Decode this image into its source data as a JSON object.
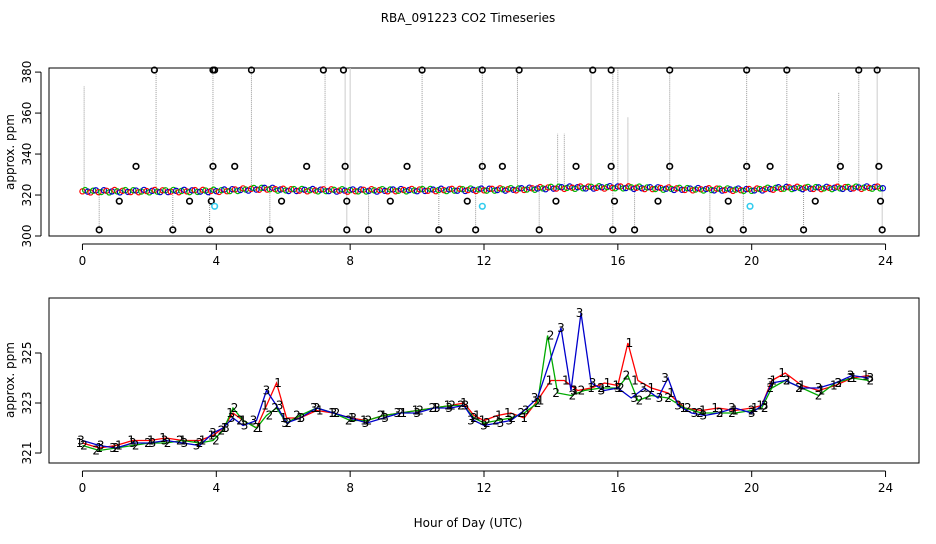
{
  "title": "RBA_091223  CO2 Timeseries",
  "colors": {
    "series1": "#ff0000",
    "series2": "#00bb00",
    "series3": "#0000cc",
    "raw": "#000000",
    "flagged": "#33ccee",
    "dropline": "#999999"
  },
  "chart_data": [
    {
      "type": "scatter",
      "panel": "top",
      "ylabel": "approx. ppm",
      "xlabel": "",
      "xlim": [
        -1,
        25
      ],
      "ylim": [
        300,
        382
      ],
      "xticks": [
        "0",
        "4",
        "8",
        "12",
        "16",
        "20",
        "24"
      ],
      "yticks": [
        "300",
        "320",
        "340",
        "360",
        "380"
      ],
      "legend": "none",
      "baseline": [
        [
          0,
          321.8
        ],
        [
          2,
          321.9
        ],
        [
          4,
          322.0
        ],
        [
          5.5,
          323.2
        ],
        [
          6,
          322.5
        ],
        [
          8,
          322.2
        ],
        [
          10,
          322.4
        ],
        [
          12,
          322.6
        ],
        [
          13,
          322.8
        ],
        [
          14,
          323.5
        ],
        [
          16,
          323.8
        ],
        [
          18,
          322.9
        ],
        [
          20,
          322.5
        ],
        [
          21,
          323.5
        ],
        [
          22,
          323.4
        ],
        [
          24,
          323.7
        ]
      ],
      "outliers_high": [
        2.15,
        3.9,
        3.95,
        5.05,
        7.2,
        7.8,
        10.15,
        11.95,
        13.05,
        15.25,
        15.8,
        17.55,
        19.85,
        21.05,
        23.2,
        23.75
      ],
      "outliers_low": [
        0.5,
        2.7,
        3.8,
        5.6,
        7.9,
        8.55,
        10.65,
        11.75,
        13.65,
        15.85,
        16.5,
        18.75,
        19.75,
        21.55,
        23.9
      ],
      "outliers_mid": [
        [
          1.6,
          334
        ],
        [
          3.9,
          334
        ],
        [
          4.55,
          334
        ],
        [
          6.7,
          334
        ],
        [
          7.85,
          334
        ],
        [
          9.7,
          334
        ],
        [
          11.95,
          334
        ],
        [
          12.55,
          334
        ],
        [
          14.75,
          334
        ],
        [
          15.8,
          334
        ],
        [
          17.55,
          334
        ],
        [
          19.85,
          334
        ],
        [
          20.55,
          334
        ],
        [
          22.65,
          334
        ],
        [
          23.8,
          334
        ]
      ],
      "outliers_low2": [
        [
          1.1,
          317
        ],
        [
          3.2,
          317
        ],
        [
          3.85,
          317
        ],
        [
          5.95,
          317
        ],
        [
          7.9,
          317
        ],
        [
          9.2,
          317
        ],
        [
          11.5,
          317
        ],
        [
          14.15,
          317
        ],
        [
          15.9,
          317
        ],
        [
          17.2,
          317
        ],
        [
          19.3,
          317
        ],
        [
          21.9,
          317
        ],
        [
          23.85,
          317
        ]
      ],
      "flagged_points": [
        [
          3.95,
          314.5
        ],
        [
          11.95,
          314.5
        ],
        [
          19.95,
          314.5
        ]
      ],
      "spikes": [
        [
          0.05,
          373
        ],
        [
          2.2,
          382
        ],
        [
          3.9,
          382
        ],
        [
          5.05,
          382
        ],
        [
          7.25,
          382
        ],
        [
          7.85,
          382
        ],
        [
          8.0,
          382
        ],
        [
          10.15,
          382
        ],
        [
          11.95,
          382
        ],
        [
          13.0,
          382
        ],
        [
          14.2,
          350
        ],
        [
          14.4,
          350
        ],
        [
          15.2,
          382
        ],
        [
          15.85,
          382
        ],
        [
          16.0,
          382
        ],
        [
          16.3,
          358
        ],
        [
          17.55,
          382
        ],
        [
          19.85,
          382
        ],
        [
          21.05,
          382
        ],
        [
          22.6,
          370
        ],
        [
          23.2,
          382
        ],
        [
          23.75,
          382
        ]
      ]
    },
    {
      "type": "line",
      "panel": "bottom",
      "ylabel": "approx. ppm",
      "xlabel": "Hour of Day (UTC)",
      "xlim": [
        -1,
        25
      ],
      "ylim": [
        320.6,
        327.2
      ],
      "xticks": [
        "0",
        "4",
        "8",
        "12",
        "16",
        "20",
        "24"
      ],
      "yticks": [
        "321",
        "323",
        "325"
      ],
      "legend": "none",
      "series": [
        {
          "marker": "1",
          "color": "#ff0000",
          "points": [
            [
              0,
              321.4
            ],
            [
              0.5,
              321.2
            ],
            [
              1,
              321.3
            ],
            [
              1.5,
              321.5
            ],
            [
              2,
              321.5
            ],
            [
              2.5,
              321.6
            ],
            [
              3,
              321.5
            ],
            [
              3.5,
              321.5
            ],
            [
              3.9,
              321.7
            ],
            [
              4.2,
              322.0
            ],
            [
              4.5,
              322.6
            ],
            [
              4.8,
              322.3
            ],
            [
              5.2,
              322.0
            ],
            [
              5.5,
              322.9
            ],
            [
              5.8,
              323.8
            ],
            [
              6.1,
              322.4
            ],
            [
              6.5,
              322.4
            ],
            [
              7,
              322.7
            ],
            [
              7.5,
              322.6
            ],
            [
              8,
              322.4
            ],
            [
              8.5,
              322.3
            ],
            [
              9,
              322.5
            ],
            [
              9.5,
              322.6
            ],
            [
              10,
              322.7
            ],
            [
              10.5,
              322.8
            ],
            [
              11,
              322.9
            ],
            [
              11.4,
              323.0
            ],
            [
              11.7,
              322.5
            ],
            [
              12,
              322.3
            ],
            [
              12.4,
              322.5
            ],
            [
              12.8,
              322.6
            ],
            [
              13.2,
              322.4
            ],
            [
              13.6,
              323.1
            ],
            [
              14.0,
              323.9
            ],
            [
              14.4,
              323.9
            ],
            [
              14.8,
              323.5
            ],
            [
              15.2,
              323.6
            ],
            [
              15.6,
              323.8
            ],
            [
              16.0,
              323.7
            ],
            [
              16.3,
              325.4
            ],
            [
              16.6,
              323.9
            ],
            [
              17.0,
              323.6
            ],
            [
              17.5,
              323.4
            ],
            [
              18,
              322.8
            ],
            [
              18.5,
              322.7
            ],
            [
              19,
              322.8
            ],
            [
              19.5,
              322.7
            ],
            [
              20,
              322.8
            ],
            [
              20.3,
              322.9
            ],
            [
              20.6,
              323.9
            ],
            [
              21.0,
              324.2
            ],
            [
              21.5,
              323.7
            ],
            [
              22,
              323.5
            ],
            [
              22.5,
              323.7
            ],
            [
              23,
              324.0
            ],
            [
              23.5,
              324.1
            ]
          ]
        },
        {
          "marker": "2",
          "color": "#00aa00",
          "points": [
            [
              0,
              321.3
            ],
            [
              0.5,
              321.1
            ],
            [
              1,
              321.2
            ],
            [
              1.5,
              321.3
            ],
            [
              2,
              321.4
            ],
            [
              2.5,
              321.4
            ],
            [
              3,
              321.5
            ],
            [
              3.5,
              321.4
            ],
            [
              3.9,
              321.5
            ],
            [
              4.2,
              321.9
            ],
            [
              4.5,
              322.8
            ],
            [
              4.8,
              322.3
            ],
            [
              5.2,
              322.0
            ],
            [
              5.5,
              322.5
            ],
            [
              5.8,
              322.8
            ],
            [
              6.1,
              322.2
            ],
            [
              6.5,
              322.5
            ],
            [
              7,
              322.8
            ],
            [
              7.5,
              322.6
            ],
            [
              8,
              322.3
            ],
            [
              8.5,
              322.3
            ],
            [
              9,
              322.5
            ],
            [
              9.5,
              322.6
            ],
            [
              10,
              322.7
            ],
            [
              10.5,
              322.8
            ],
            [
              11,
              322.9
            ],
            [
              11.4,
              322.9
            ],
            [
              11.7,
              322.4
            ],
            [
              12,
              322.2
            ],
            [
              12.4,
              322.3
            ],
            [
              12.8,
              322.4
            ],
            [
              13.2,
              322.6
            ],
            [
              13.6,
              323.0
            ],
            [
              13.9,
              325.7
            ],
            [
              14.2,
              323.4
            ],
            [
              14.6,
              323.3
            ],
            [
              15.0,
              323.5
            ],
            [
              15.5,
              323.6
            ],
            [
              16.0,
              323.6
            ],
            [
              16.3,
              324.1
            ],
            [
              16.6,
              323.1
            ],
            [
              17.0,
              323.3
            ],
            [
              17.5,
              323.2
            ],
            [
              18,
              322.8
            ],
            [
              18.5,
              322.6
            ],
            [
              19,
              322.6
            ],
            [
              19.5,
              322.6
            ],
            [
              20,
              322.7
            ],
            [
              20.3,
              322.8
            ],
            [
              20.6,
              323.6
            ],
            [
              21.0,
              323.9
            ],
            [
              21.5,
              323.6
            ],
            [
              22,
              323.3
            ],
            [
              22.5,
              323.8
            ],
            [
              23,
              324.0
            ],
            [
              23.5,
              323.9
            ]
          ]
        },
        {
          "marker": "3",
          "color": "#0000cc",
          "points": [
            [
              0,
              321.5
            ],
            [
              0.5,
              321.3
            ],
            [
              1,
              321.2
            ],
            [
              1.5,
              321.4
            ],
            [
              2,
              321.4
            ],
            [
              2.5,
              321.5
            ],
            [
              3,
              321.4
            ],
            [
              3.5,
              321.3
            ],
            [
              3.9,
              321.8
            ],
            [
              4.2,
              322.0
            ],
            [
              4.5,
              322.4
            ],
            [
              4.8,
              322.1
            ],
            [
              5.2,
              322.3
            ],
            [
              5.5,
              323.5
            ],
            [
              5.8,
              322.9
            ],
            [
              6.1,
              322.2
            ],
            [
              6.5,
              322.4
            ],
            [
              7,
              322.8
            ],
            [
              7.5,
              322.6
            ],
            [
              8,
              322.4
            ],
            [
              8.5,
              322.2
            ],
            [
              9,
              322.4
            ],
            [
              9.5,
              322.6
            ],
            [
              10,
              322.6
            ],
            [
              10.5,
              322.8
            ],
            [
              11,
              322.8
            ],
            [
              11.4,
              322.9
            ],
            [
              11.7,
              322.3
            ],
            [
              12,
              322.1
            ],
            [
              12.4,
              322.2
            ],
            [
              12.8,
              322.3
            ],
            [
              13.2,
              322.7
            ],
            [
              13.6,
              323.2
            ],
            [
              14.3,
              326.0
            ],
            [
              14.6,
              323.5
            ],
            [
              14.9,
              326.6
            ],
            [
              15.2,
              323.8
            ],
            [
              15.6,
              323.5
            ],
            [
              16.0,
              323.6
            ],
            [
              16.4,
              323.2
            ],
            [
              16.8,
              323.6
            ],
            [
              17.2,
              323.2
            ],
            [
              17.5,
              324.0
            ],
            [
              17.8,
              322.9
            ],
            [
              18.2,
              322.6
            ],
            [
              18.6,
              322.5
            ],
            [
              19,
              322.6
            ],
            [
              19.5,
              322.8
            ],
            [
              20,
              322.6
            ],
            [
              20.3,
              322.9
            ],
            [
              20.6,
              323.8
            ],
            [
              21.0,
              323.9
            ],
            [
              21.5,
              323.6
            ],
            [
              22,
              323.6
            ],
            [
              22.5,
              323.8
            ],
            [
              23,
              324.1
            ],
            [
              23.5,
              324.0
            ]
          ]
        }
      ]
    }
  ]
}
